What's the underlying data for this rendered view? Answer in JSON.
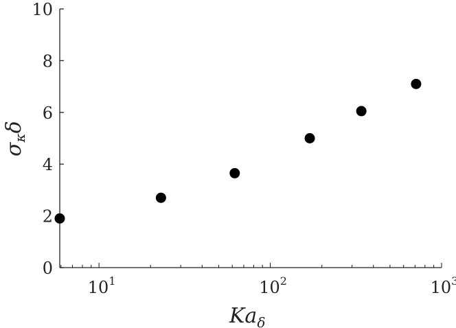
{
  "chart_data": {
    "type": "scatter",
    "x": [
      5.9,
      23,
      62,
      170,
      340,
      710
    ],
    "y": [
      1.9,
      2.7,
      3.65,
      5.0,
      6.05,
      7.1
    ],
    "xscale": "log",
    "xlim": [
      5.9,
      1000
    ],
    "ylim": [
      0,
      10
    ],
    "yticks": [
      "0",
      "2",
      "4",
      "6",
      "8",
      "10"
    ],
    "xticks": [
      {
        "base": "10",
        "exp": "1",
        "value": 10
      },
      {
        "base": "10",
        "exp": "2",
        "value": 100
      },
      {
        "base": "10",
        "exp": "3",
        "value": 1000
      }
    ],
    "xlabel": {
      "main": "Ka",
      "sub": "δ"
    },
    "ylabel": {
      "main": "σ",
      "sub": "κ",
      "tail": "δ"
    },
    "grid": false,
    "marker_color": "#000000",
    "axis_color": "#222222"
  }
}
